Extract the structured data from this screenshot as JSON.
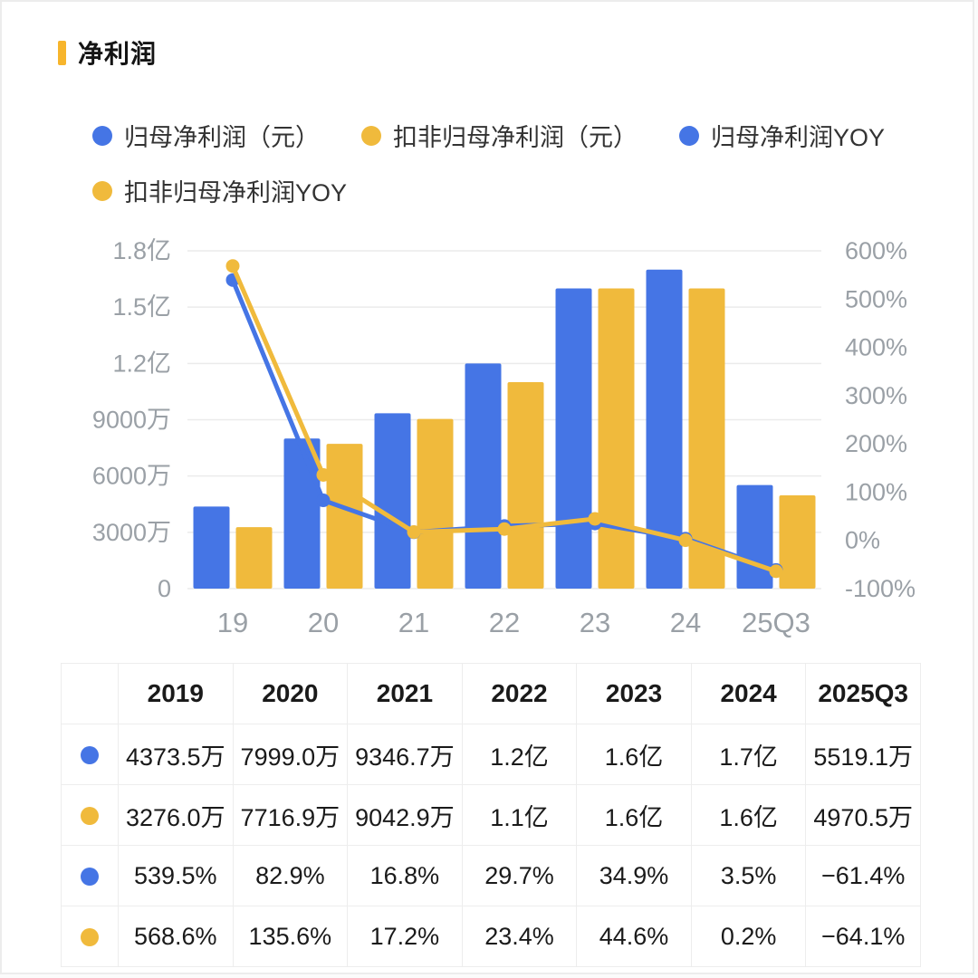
{
  "title": "净利润",
  "colors": {
    "blue": "#4575e5",
    "yellow": "#f0ba3c",
    "title_accent": "#f7b52c",
    "axis_label": "#9aa0a6",
    "gridline": "#ebebeb"
  },
  "legend": [
    {
      "label": "归母净利润（元）",
      "color": "#4575e5"
    },
    {
      "label": "扣非归母净利润（元）",
      "color": "#f0ba3c"
    },
    {
      "label": "归母净利润YOY",
      "color": "#4575e5"
    },
    {
      "label": "扣非归母净利润YOY",
      "color": "#f0ba3c"
    }
  ],
  "chart_data": {
    "type": "combo-bar-line",
    "categories": [
      "19",
      "20",
      "21",
      "22",
      "23",
      "24",
      "25Q3"
    ],
    "bar_series": [
      {
        "name": "归母净利润（元）",
        "color": "#4575e5",
        "unit": "万",
        "values": [
          4373.5,
          7999.0,
          9346.7,
          12000,
          16000,
          17000,
          5519.1
        ]
      },
      {
        "name": "扣非归母净利润（元）",
        "color": "#f0ba3c",
        "unit": "万",
        "values": [
          3276.0,
          7716.9,
          9042.9,
          11000,
          16000,
          16000,
          4970.5
        ]
      }
    ],
    "line_series": [
      {
        "name": "归母净利润YOY",
        "color": "#4575e5",
        "unit": "%",
        "values": [
          539.5,
          82.9,
          16.8,
          29.7,
          34.9,
          3.5,
          -61.4
        ]
      },
      {
        "name": "扣非归母净利润YOY",
        "color": "#f0ba3c",
        "unit": "%",
        "values": [
          568.6,
          135.6,
          17.2,
          23.4,
          44.6,
          0.2,
          -64.1
        ]
      }
    ],
    "left_axis": {
      "ticks": [
        "1.8亿",
        "1.5亿",
        "1.2亿",
        "9000万",
        "6000万",
        "3000万",
        "0"
      ],
      "max_wan": 18000,
      "min_wan": 0
    },
    "right_axis": {
      "ticks": [
        "600%",
        "500%",
        "400%",
        "300%",
        "200%",
        "100%",
        "0%",
        "-100%"
      ],
      "max_pct": 600,
      "min_pct": -100
    },
    "grid": true,
    "legend_position": "top"
  },
  "table": {
    "header": [
      "2019",
      "2020",
      "2021",
      "2022",
      "2023",
      "2024",
      "2025Q3"
    ],
    "rows": [
      {
        "dot_color": "#4575e5",
        "name": "归母净利润（元）",
        "values": [
          "4373.5万",
          "7999.0万",
          "9346.7万",
          "1.2亿",
          "1.6亿",
          "1.7亿",
          "5519.1万"
        ]
      },
      {
        "dot_color": "#f0ba3c",
        "name": "扣非归母净利润（元）",
        "values": [
          "3276.0万",
          "7716.9万",
          "9042.9万",
          "1.1亿",
          "1.6亿",
          "1.6亿",
          "4970.5万"
        ]
      },
      {
        "dot_color": "#4575e5",
        "name": "归母净利润YOY",
        "values": [
          "539.5%",
          "82.9%",
          "16.8%",
          "29.7%",
          "34.9%",
          "3.5%",
          "−61.4%"
        ]
      },
      {
        "dot_color": "#f0ba3c",
        "name": "扣非归母净利润YOY",
        "values": [
          "568.6%",
          "135.6%",
          "17.2%",
          "23.4%",
          "44.6%",
          "0.2%",
          "−64.1%"
        ]
      }
    ]
  }
}
